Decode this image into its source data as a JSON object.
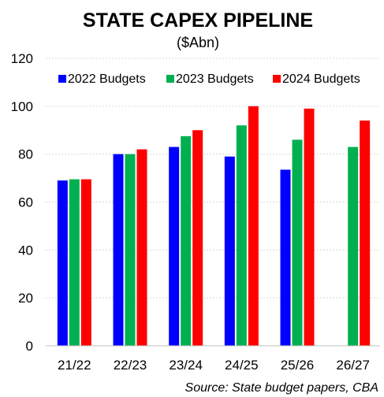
{
  "chart_data": {
    "type": "bar",
    "title": "STATE CAPEX PIPELINE",
    "subtitle": "($Abn)",
    "source": "Source: State budget papers, CBA",
    "categories": [
      "21/22",
      "22/23",
      "23/24",
      "24/25",
      "25/26",
      "26/27"
    ],
    "series": [
      {
        "name": "2022 Budgets",
        "color": "#0000ff",
        "values": [
          69,
          80,
          83,
          79,
          73.5,
          null
        ]
      },
      {
        "name": "2023 Budgets",
        "color": "#00b050",
        "values": [
          69.5,
          80,
          87.5,
          92,
          86,
          83
        ]
      },
      {
        "name": "2024 Budgets",
        "color": "#ff0000",
        "values": [
          69.5,
          82,
          90,
          100,
          99,
          94
        ]
      }
    ],
    "ylim": [
      0,
      120
    ],
    "yticks": [
      "0",
      "20",
      "40",
      "60",
      "80",
      "100",
      "120"
    ],
    "grid": "horizontal-dashed",
    "legend_position": "top"
  }
}
